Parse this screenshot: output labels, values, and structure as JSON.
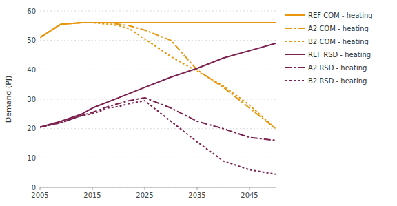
{
  "chart_data": {
    "type": "line",
    "ylabel": "Demand (PJ)",
    "xlim": [
      2005,
      2050
    ],
    "ylim": [
      0,
      60
    ],
    "yticks": [
      0,
      10,
      20,
      30,
      40,
      50,
      60
    ],
    "xticks": [
      2005,
      2015,
      2025,
      2035,
      2045
    ],
    "grid": true,
    "legend": "right",
    "series": [
      {
        "name": "REF COM - heating",
        "color": "#E8960C",
        "line_style": "solid",
        "x": [
          2005,
          2009,
          2013,
          2015,
          2020,
          2025,
          2030,
          2035,
          2040,
          2045,
          2050
        ],
        "values": [
          51.0,
          55.5,
          56.0,
          56.0,
          56.0,
          56.0,
          56.0,
          56.0,
          56.0,
          56.0,
          56.0
        ]
      },
      {
        "name": "A2 COM - heating",
        "color": "#E8960C",
        "line_style": "dashdot",
        "x": [
          2005,
          2009,
          2013,
          2015,
          2018,
          2020,
          2022,
          2025,
          2030,
          2035,
          2040,
          2045,
          2050
        ],
        "values": [
          51.0,
          55.5,
          56.0,
          56.0,
          56.0,
          55.5,
          55.0,
          53.5,
          50.0,
          40.0,
          34.0,
          27.0,
          20.0
        ]
      },
      {
        "name": "B2 COM - heating",
        "color": "#E8960C",
        "line_style": "dotted",
        "x": [
          2005,
          2009,
          2013,
          2015,
          2018,
          2020,
          2022,
          2025,
          2030,
          2035,
          2040,
          2045,
          2050
        ],
        "values": [
          51.0,
          55.5,
          56.0,
          56.0,
          55.5,
          55.0,
          54.0,
          50.5,
          44.5,
          39.5,
          34.5,
          28.0,
          20.0
        ]
      },
      {
        "name": "REF RSD - heating",
        "color": "#7B1F4E",
        "line_style": "solid",
        "x": [
          2005,
          2009,
          2013,
          2015,
          2020,
          2025,
          2030,
          2035,
          2040,
          2045,
          2050
        ],
        "values": [
          20.5,
          22.5,
          25.0,
          27.0,
          30.5,
          34.0,
          37.5,
          40.5,
          44.0,
          46.5,
          49.0
        ]
      },
      {
        "name": "A2 RSD - heating",
        "color": "#7B1F4E",
        "line_style": "dashdot",
        "x": [
          2005,
          2009,
          2013,
          2015,
          2018,
          2020,
          2022,
          2025,
          2030,
          2035,
          2040,
          2045,
          2050
        ],
        "values": [
          20.5,
          22.0,
          24.5,
          25.5,
          27.5,
          28.5,
          29.5,
          30.5,
          27.0,
          22.5,
          20.0,
          17.0,
          16.0
        ]
      },
      {
        "name": "B2 RSD - heating",
        "color": "#7B1F4E",
        "line_style": "dotted",
        "x": [
          2005,
          2009,
          2013,
          2015,
          2018,
          2020,
          2022,
          2025,
          2030,
          2035,
          2040,
          2045,
          2050
        ],
        "values": [
          20.5,
          22.0,
          24.5,
          25.0,
          27.0,
          27.5,
          28.5,
          29.5,
          22.5,
          15.5,
          9.0,
          6.0,
          4.5
        ]
      }
    ]
  }
}
